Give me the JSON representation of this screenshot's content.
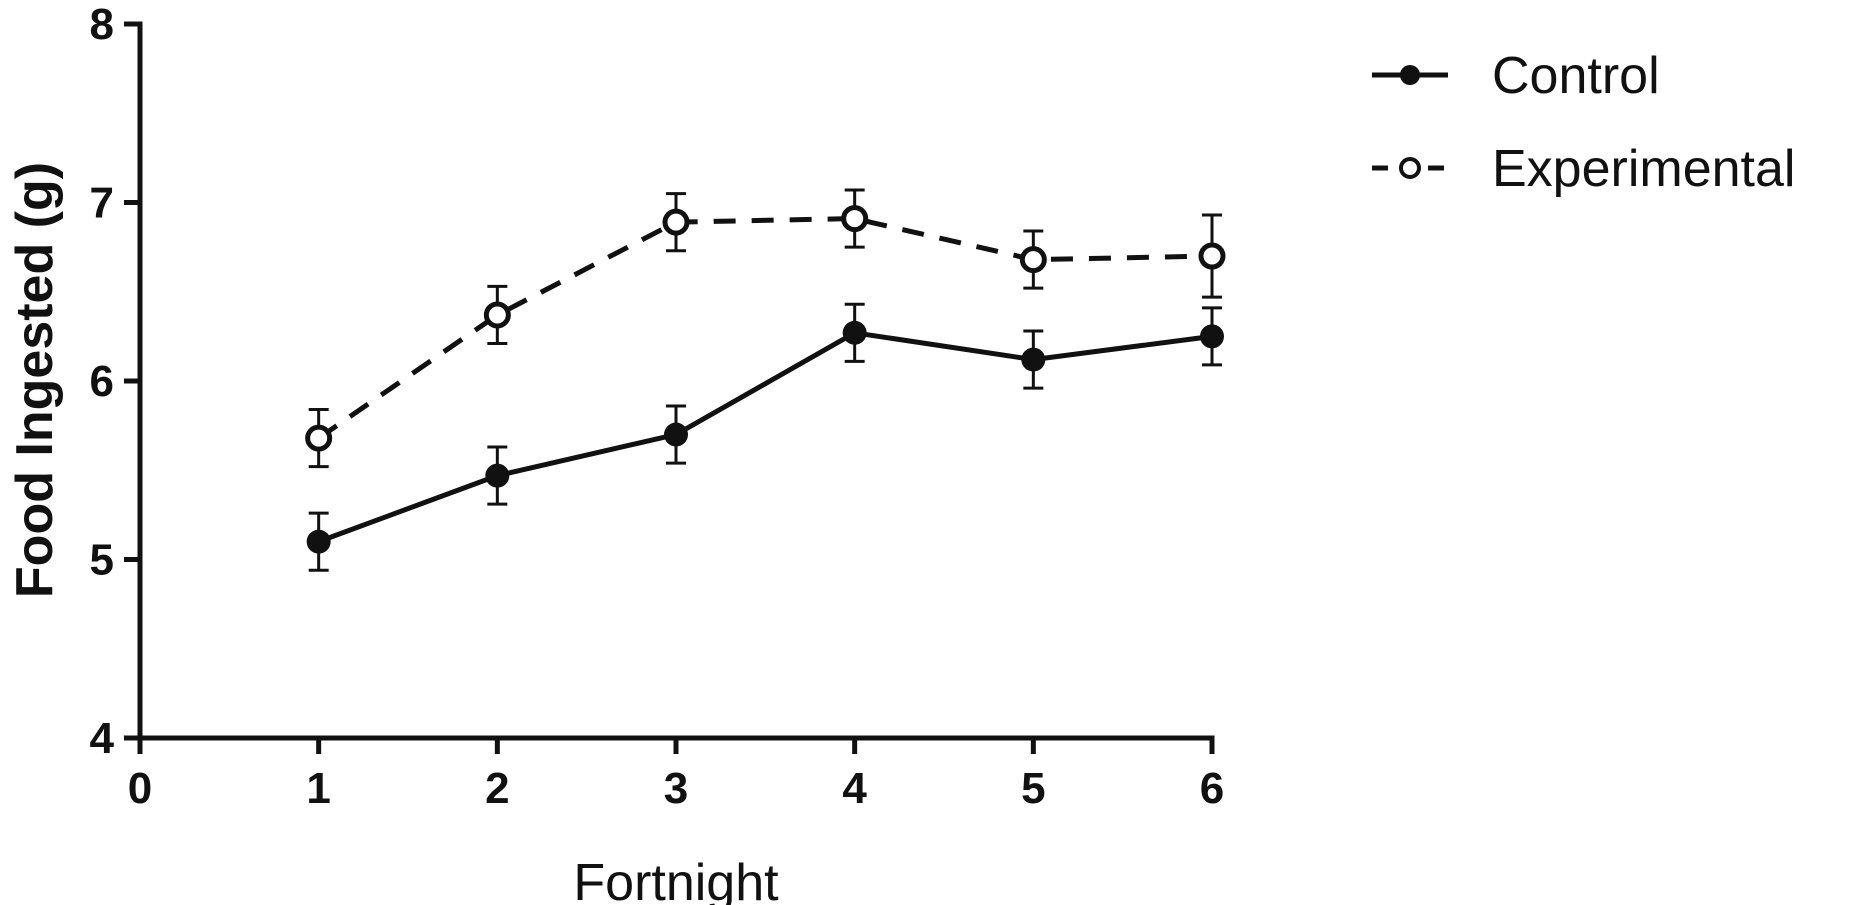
{
  "chart_data": {
    "type": "line",
    "xlabel": "Fortnight",
    "ylabel": "Food Ingested (g)",
    "xlim": [
      0,
      6
    ],
    "ylim": [
      4,
      8
    ],
    "xticks": [
      "0",
      "1",
      "2",
      "3",
      "4",
      "5",
      "6"
    ],
    "yticks": [
      "4",
      "5",
      "6",
      "7",
      "8"
    ],
    "grid": false,
    "legend_position": "top-right",
    "series": [
      {
        "name": "Control",
        "style": "solid",
        "marker": "filled-circle",
        "color": "#111111",
        "x": [
          1,
          2,
          3,
          4,
          5,
          6
        ],
        "y": [
          5.1,
          5.47,
          5.7,
          6.27,
          6.12,
          6.25
        ],
        "error": [
          0.16,
          0.16,
          0.16,
          0.16,
          0.16,
          0.16
        ]
      },
      {
        "name": "Experimental",
        "style": "dashed",
        "marker": "open-circle",
        "color": "#111111",
        "x": [
          1,
          2,
          3,
          4,
          5,
          6
        ],
        "y": [
          5.68,
          6.37,
          6.89,
          6.91,
          6.68,
          6.7
        ],
        "error": [
          0.16,
          0.16,
          0.16,
          0.16,
          0.16,
          0.23
        ]
      }
    ]
  }
}
